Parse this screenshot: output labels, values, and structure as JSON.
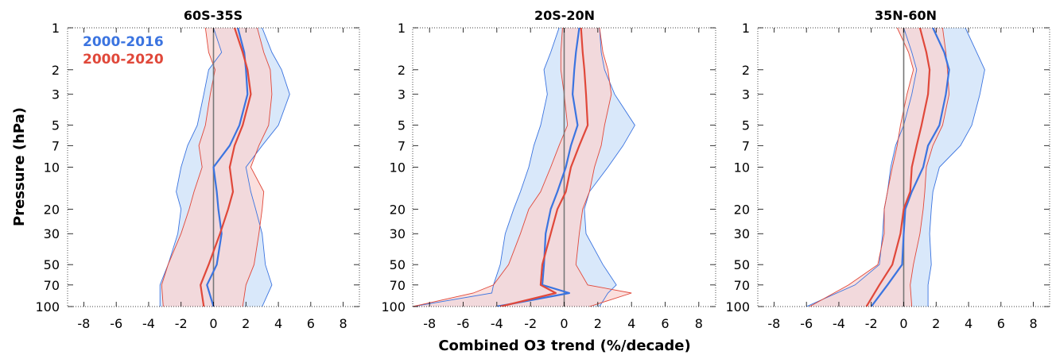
{
  "figure": {
    "xlabel": "Combined O3 trend (%/decade)",
    "ylabel": "Pressure (hPa)"
  },
  "colors": {
    "series_2000_2016": "#3b74e0",
    "series_2000_2016_fill": "#d9e8fa",
    "series_2000_2020": "#e0483a",
    "series_2000_2020_fill": "#f9d4d1",
    "overlap_fill": "#dcc8dc",
    "zero_line": "#777777"
  },
  "chart_data": [
    {
      "type": "line",
      "title": "60S-35S",
      "xlim": [
        -9,
        9
      ],
      "ylim": [
        100,
        1
      ],
      "yscale": "log",
      "xticks": [
        "-8",
        "-6",
        "-4",
        "-2",
        "0",
        "2",
        "4",
        "6",
        "8"
      ],
      "yticks": [
        "1",
        "2",
        "3",
        "5",
        "7",
        "10",
        "20",
        "30",
        "50",
        "70",
        "100"
      ],
      "legend": {
        "placement": "top-left",
        "entries": [
          "2000-2016",
          "2000-2020"
        ]
      },
      "series": [
        {
          "name": "2000-2016",
          "pressure": [
            1,
            1.5,
            2,
            3,
            5,
            7,
            10,
            15,
            20,
            30,
            50,
            70,
            100
          ],
          "mean": [
            1.5,
            1.9,
            2.0,
            2.1,
            1.6,
            1.0,
            0.0,
            0.2,
            0.3,
            0.5,
            0.2,
            -0.4,
            0.0
          ],
          "lower": [
            0.0,
            0.5,
            -0.3,
            -0.6,
            -1.0,
            -1.6,
            -2.0,
            -2.3,
            -2.0,
            -2.2,
            -2.8,
            -3.3,
            -3.3
          ],
          "upper": [
            3.0,
            3.6,
            4.2,
            4.7,
            4.0,
            3.0,
            2.0,
            2.3,
            2.6,
            3.0,
            3.2,
            3.6,
            3.0
          ]
        },
        {
          "name": "2000-2020",
          "pressure": [
            1,
            1.5,
            2,
            3,
            5,
            7,
            10,
            15,
            20,
            30,
            50,
            70,
            100
          ],
          "mean": [
            1.3,
            1.8,
            2.1,
            2.3,
            1.8,
            1.3,
            1.0,
            1.2,
            0.9,
            0.4,
            -0.3,
            -0.8,
            -0.6
          ],
          "lower": [
            -0.5,
            -0.3,
            0.1,
            -0.2,
            -0.5,
            -0.9,
            -0.7,
            -1.2,
            -1.5,
            -2.0,
            -2.8,
            -3.2,
            -3.1
          ],
          "upper": [
            2.7,
            3.1,
            3.5,
            3.6,
            3.4,
            2.8,
            2.3,
            3.1,
            3.0,
            2.8,
            2.5,
            2.0,
            1.8
          ]
        }
      ]
    },
    {
      "type": "line",
      "title": "20S-20N",
      "xlim": [
        -9,
        9
      ],
      "ylim": [
        100,
        1
      ],
      "yscale": "log",
      "xticks": [
        "-8",
        "-6",
        "-4",
        "-2",
        "0",
        "2",
        "4",
        "6",
        "8"
      ],
      "yticks": [
        "1",
        "2",
        "3",
        "5",
        "7",
        "10",
        "20",
        "30",
        "50",
        "70",
        "100"
      ],
      "series": [
        {
          "name": "2000-2016",
          "pressure": [
            1,
            1.5,
            2,
            3,
            5,
            7,
            10,
            15,
            20,
            30,
            50,
            70,
            80,
            100
          ],
          "mean": [
            0.9,
            0.7,
            0.6,
            0.5,
            0.8,
            0.4,
            0.1,
            -0.4,
            -0.8,
            -1.1,
            -1.2,
            -1.3,
            0.3,
            -4.0
          ],
          "lower": [
            -0.3,
            -0.8,
            -1.2,
            -1.0,
            -1.4,
            -1.8,
            -2.1,
            -2.6,
            -3.0,
            -3.5,
            -3.8,
            -4.2,
            -4.3,
            -9.0
          ],
          "upper": [
            2.1,
            2.2,
            2.4,
            3.0,
            4.2,
            3.5,
            2.6,
            1.5,
            1.2,
            1.3,
            2.3,
            3.1,
            2.6,
            2.1
          ]
        },
        {
          "name": "2000-2020",
          "pressure": [
            1,
            1.5,
            2,
            3,
            5,
            7,
            10,
            15,
            20,
            30,
            50,
            70,
            80,
            100
          ],
          "mean": [
            1.0,
            1.1,
            1.2,
            1.3,
            1.4,
            0.9,
            0.4,
            0.1,
            -0.4,
            -0.8,
            -1.3,
            -1.4,
            -0.5,
            -3.8
          ],
          "lower": [
            -0.1,
            -0.2,
            -0.2,
            0.0,
            0.2,
            -0.3,
            -0.8,
            -1.4,
            -2.1,
            -2.6,
            -3.3,
            -4.2,
            -5.4,
            -9.0
          ],
          "upper": [
            2.1,
            2.3,
            2.6,
            2.8,
            2.4,
            2.2,
            1.8,
            1.5,
            1.1,
            0.9,
            0.7,
            1.4,
            4.0,
            1.5
          ]
        }
      ]
    },
    {
      "type": "line",
      "title": "35N-60N",
      "xlim": [
        -9,
        9
      ],
      "ylim": [
        100,
        1
      ],
      "yscale": "log",
      "xticks": [
        "-8",
        "-6",
        "-4",
        "-2",
        "0",
        "2",
        "4",
        "6",
        "8"
      ],
      "yticks": [
        "1",
        "2",
        "3",
        "5",
        "7",
        "10",
        "20",
        "30",
        "50",
        "70",
        "100"
      ],
      "series": [
        {
          "name": "2000-2016",
          "pressure": [
            1,
            1.5,
            2,
            3,
            5,
            7,
            10,
            15,
            20,
            30,
            50,
            70,
            100
          ],
          "mean": [
            1.8,
            2.5,
            2.8,
            2.6,
            2.2,
            1.5,
            1.2,
            0.5,
            0.1,
            0.0,
            -0.1,
            -1.0,
            -2.0
          ],
          "lower": [
            0.0,
            0.5,
            0.8,
            0.5,
            0.0,
            -0.5,
            -0.8,
            -1.0,
            -1.2,
            -1.3,
            -1.5,
            -3.0,
            -6.0
          ],
          "upper": [
            3.8,
            4.5,
            5.0,
            4.7,
            4.2,
            3.5,
            2.2,
            1.8,
            1.7,
            1.6,
            1.7,
            1.5,
            1.5
          ]
        },
        {
          "name": "2000-2020",
          "pressure": [
            1,
            1.5,
            2,
            3,
            5,
            7,
            10,
            15,
            20,
            30,
            50,
            70,
            100
          ],
          "mean": [
            1.0,
            1.4,
            1.6,
            1.5,
            1.1,
            0.8,
            0.5,
            0.4,
            0.0,
            -0.2,
            -0.7,
            -1.5,
            -2.3
          ],
          "lower": [
            -0.4,
            0.3,
            0.6,
            0.2,
            -0.2,
            -0.4,
            -0.7,
            -1.0,
            -1.2,
            -1.2,
            -1.6,
            -3.4,
            -5.8
          ],
          "upper": [
            2.4,
            2.6,
            2.7,
            2.8,
            2.4,
            1.8,
            1.4,
            1.3,
            1.2,
            1.0,
            0.6,
            0.4,
            0.5
          ]
        }
      ]
    }
  ]
}
